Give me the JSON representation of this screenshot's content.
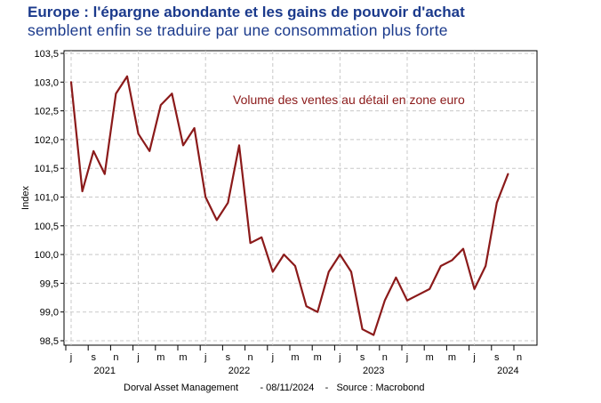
{
  "title": "Europe : l'épargne abondante et les gains de pouvoir d'achat",
  "subtitle": "semblent enfin se traduire par une consommation plus forte",
  "footer": "Dorval Asset Management        - 08/11/2024    -   Source : Macrobond",
  "chart_data": {
    "type": "line",
    "ylabel": "Index",
    "annotation": "Volume des ventes au détail en zone euro",
    "ylim": [
      98.5,
      103.5
    ],
    "yticks": [
      "103,5",
      "103,0",
      "102,5",
      "102,0",
      "101,5",
      "101,0",
      "100,5",
      "100,0",
      "99,5",
      "99,0",
      "98,5"
    ],
    "ytick_values": [
      103.5,
      103.0,
      102.5,
      102.0,
      101.5,
      101.0,
      100.5,
      100.0,
      99.5,
      99.0,
      98.5
    ],
    "month_labels": [
      "j",
      "s",
      "n",
      "j",
      "m",
      "m",
      "j",
      "s",
      "n",
      "j",
      "m",
      "m",
      "j",
      "s",
      "n",
      "j",
      "m",
      "m",
      "j",
      "s",
      "n"
    ],
    "year_labels": [
      {
        "label": "2021",
        "month_index": 3
      },
      {
        "label": "2022",
        "month_index": 15
      },
      {
        "label": "2023",
        "month_index": 27
      },
      {
        "label": "2024",
        "month_index": 39
      }
    ],
    "grid": true,
    "series": [
      {
        "color": "#8b1a1a",
        "values": [
          103.0,
          101.1,
          101.8,
          101.4,
          102.8,
          103.1,
          102.1,
          101.8,
          102.6,
          102.8,
          101.9,
          102.2,
          101.0,
          100.6,
          100.9,
          101.9,
          100.2,
          100.3,
          99.7,
          100.0,
          99.8,
          99.1,
          99.0,
          99.7,
          100.0,
          99.7,
          98.7,
          98.6,
          99.2,
          99.6,
          99.2,
          99.3,
          99.4,
          99.8,
          99.9,
          100.1,
          99.4,
          99.8,
          100.9,
          101.4
        ]
      }
    ]
  }
}
